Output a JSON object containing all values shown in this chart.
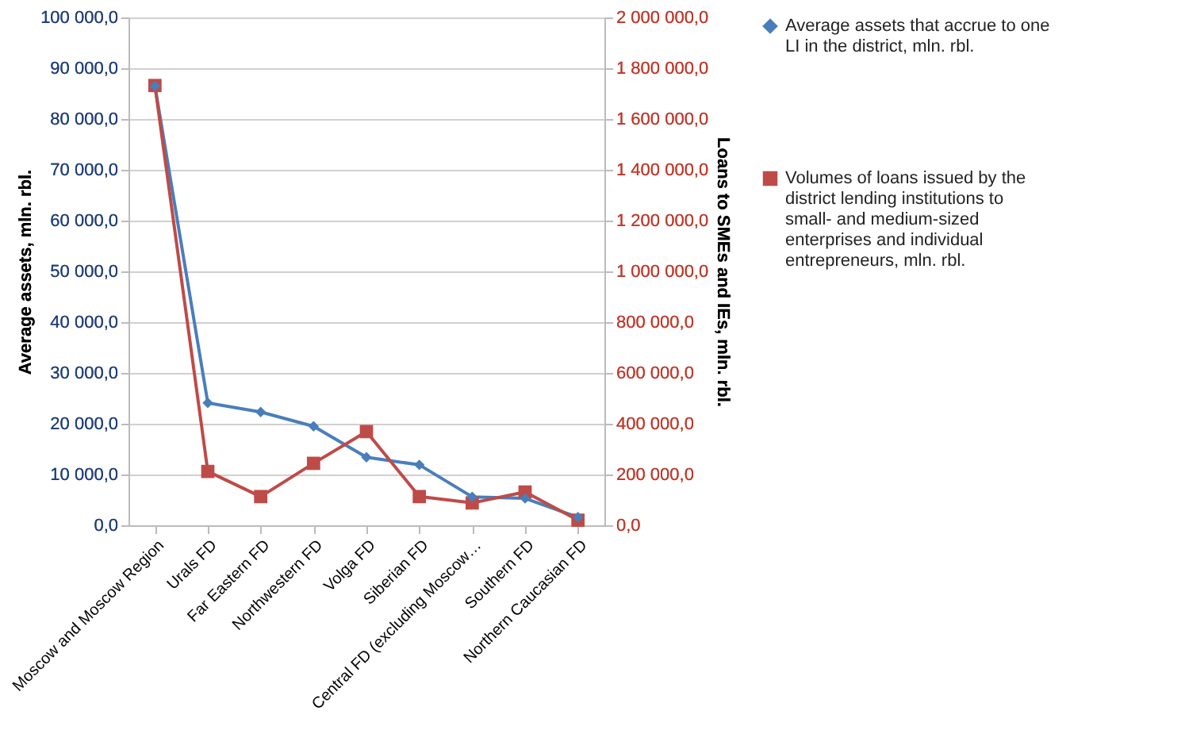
{
  "chart_data": {
    "type": "line",
    "categories": [
      "Moscow and Moscow Region",
      "Urals FD",
      "Far Eastern FD",
      "Northwestern FD",
      "Volga FD",
      "Siberian FD",
      "Central FD (excluding Moscow…",
      "Southern FD",
      "Northern Caucasian FD"
    ],
    "series": [
      {
        "name": "Average assets that accrue to one LI in the district, mln. rbl.",
        "color": "#4a7ebb",
        "marker": "diamond",
        "axis": "y",
        "values": [
          86500,
          24100,
          22300,
          19500,
          13400,
          11900,
          5600,
          5300,
          1600
        ]
      },
      {
        "name": "Volumes of loans issued by the district lending institutions to small- and medium-sized enterprises and individual entrepreneurs, mln. rbl.",
        "color": "#be4b48",
        "marker": "square",
        "axis": "y2",
        "values": [
          1732000,
          212000,
          113000,
          244000,
          369000,
          113000,
          88000,
          131000,
          20000
        ]
      }
    ],
    "ylabel": "Average  assets, mln. rbl.",
    "y2label": "Loans to SMEs and IEs, mln. rbl.",
    "ylim": [
      0,
      100000
    ],
    "yticks": [
      {
        "value": 0,
        "label": "0,0"
      },
      {
        "value": 10000,
        "label": "10 000,0"
      },
      {
        "value": 20000,
        "label": "20 000,0"
      },
      {
        "value": 30000,
        "label": "30 000,0"
      },
      {
        "value": 40000,
        "label": "40 000,0"
      },
      {
        "value": 50000,
        "label": "50 000,0"
      },
      {
        "value": 60000,
        "label": "60 000,0"
      },
      {
        "value": 70000,
        "label": "70 000,0"
      },
      {
        "value": 80000,
        "label": "80 000,0"
      },
      {
        "value": 90000,
        "label": "90 000,0"
      },
      {
        "value": 100000,
        "label": "100 000,0"
      }
    ],
    "y2lim": [
      0,
      2000000
    ],
    "y2ticks": [
      {
        "value": 0,
        "label": "0,0"
      },
      {
        "value": 200000,
        "label": "200 000,0"
      },
      {
        "value": 400000,
        "label": "400 000,0"
      },
      {
        "value": 600000,
        "label": "600 000,0"
      },
      {
        "value": 800000,
        "label": "800 000,0"
      },
      {
        "value": 1000000,
        "label": "1 000 000,0"
      },
      {
        "value": 1200000,
        "label": "1 200 000,0"
      },
      {
        "value": 1400000,
        "label": "1 400 000,0"
      },
      {
        "value": 1600000,
        "label": "1 600 000,0"
      },
      {
        "value": 1800000,
        "label": "1 800 000,0"
      },
      {
        "value": 2000000,
        "label": "2 000 000,0"
      }
    ],
    "grid": "y",
    "legend": "right",
    "line_style": "solid"
  }
}
